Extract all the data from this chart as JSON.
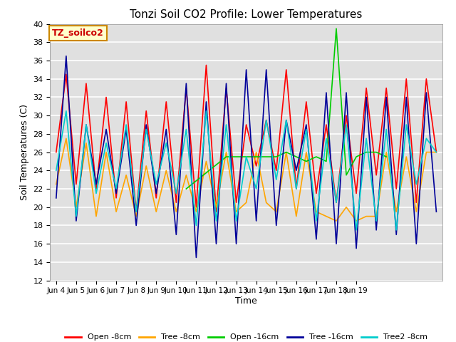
{
  "title": "Tonzi Soil CO2 Profile: Lower Temperatures",
  "xlabel": "Time",
  "ylabel": "Soil Temperatures (C)",
  "annotation": "TZ_soilco2",
  "ylim": [
    12,
    40
  ],
  "yticks": [
    12,
    14,
    16,
    18,
    20,
    22,
    24,
    26,
    28,
    30,
    32,
    34,
    36,
    38,
    40
  ],
  "bg_color": "#e0e0e0",
  "grid_color": "white",
  "series": {
    "Open -8cm": {
      "color": "#ff0000",
      "x": [
        0,
        0.5,
        1,
        1.5,
        2,
        2.5,
        3,
        3.5,
        4,
        4.5,
        5,
        5.5,
        6,
        6.5,
        7,
        7.5,
        8,
        8.5,
        9,
        9.5,
        10,
        10.5,
        11,
        11.5,
        12,
        12.5,
        13,
        13.5,
        14,
        14.5,
        15,
        15.5,
        16,
        16.5,
        17,
        17.5,
        18,
        18.5,
        19
      ],
      "y": [
        26.0,
        34.5,
        22.5,
        33.5,
        22.0,
        32.0,
        21.0,
        31.5,
        19.5,
        30.5,
        21.0,
        31.5,
        20.5,
        33.0,
        20.0,
        35.5,
        19.5,
        33.0,
        20.5,
        29.0,
        24.5,
        29.5,
        24.0,
        35.0,
        22.0,
        31.5,
        21.5,
        29.0,
        20.5,
        30.0,
        21.5,
        33.0,
        23.5,
        33.0,
        22.0,
        34.0,
        20.5,
        34.0,
        26.0
      ]
    },
    "Tree -8cm": {
      "color": "#ffa500",
      "x": [
        0,
        0.5,
        1,
        1.5,
        2,
        2.5,
        3,
        3.5,
        4,
        4.5,
        5,
        5.5,
        6,
        6.5,
        7,
        7.5,
        8,
        8.5,
        9,
        9.5,
        10,
        10.5,
        11,
        11.5,
        12,
        12.5,
        13,
        13.5,
        14,
        14.5,
        15,
        15.5,
        16,
        16.5,
        17,
        17.5,
        18,
        18.5,
        19
      ],
      "y": [
        22.5,
        27.5,
        20.0,
        27.0,
        19.0,
        26.0,
        19.5,
        23.5,
        19.0,
        24.5,
        19.5,
        24.0,
        19.5,
        23.5,
        19.5,
        25.0,
        20.0,
        26.0,
        19.5,
        20.5,
        26.0,
        20.5,
        19.5,
        26.0,
        19.0,
        26.0,
        19.5,
        19.0,
        18.5,
        20.0,
        18.5,
        19.0,
        19.0,
        26.0,
        19.5,
        25.5,
        19.5,
        26.0,
        26.0
      ]
    },
    "Open -16cm": {
      "color": "#00cc00",
      "x": [
        6.5,
        8.5,
        9.0,
        9.5,
        10.0,
        10.5,
        11.0,
        11.5,
        12.0,
        12.5,
        13.0,
        13.5,
        14.0,
        14.5,
        15.0,
        15.5,
        16.0,
        16.5
      ],
      "y": [
        22.0,
        25.5,
        25.5,
        25.5,
        25.5,
        25.5,
        25.5,
        26.0,
        25.5,
        25.0,
        25.5,
        25.0,
        39.5,
        23.5,
        25.5,
        26.0,
        26.0,
        25.5
      ]
    },
    "Tree -16cm": {
      "color": "#000099",
      "x": [
        0,
        0.5,
        1,
        1.5,
        2,
        2.5,
        3,
        3.5,
        4,
        4.5,
        5,
        5.5,
        6,
        6.5,
        7,
        7.5,
        8,
        8.5,
        9,
        9.5,
        10,
        10.5,
        11,
        11.5,
        12,
        12.5,
        13,
        13.5,
        14,
        14.5,
        15,
        15.5,
        16,
        16.5,
        17,
        17.5,
        18,
        18.5,
        19
      ],
      "y": [
        21.0,
        36.5,
        18.5,
        29.0,
        22.5,
        28.5,
        21.5,
        28.5,
        18.0,
        29.0,
        21.5,
        28.5,
        17.0,
        33.5,
        14.5,
        31.5,
        16.0,
        33.5,
        16.0,
        35.0,
        18.5,
        35.0,
        18.0,
        29.5,
        24.0,
        29.0,
        16.5,
        32.5,
        16.0,
        32.5,
        15.5,
        32.0,
        17.5,
        32.0,
        17.0,
        32.0,
        16.0,
        32.5,
        19.5
      ]
    },
    "Tree2 -8cm": {
      "color": "#00cccc",
      "x": [
        0,
        0.5,
        1,
        1.5,
        2,
        2.5,
        3,
        3.5,
        4,
        4.5,
        5,
        5.5,
        6,
        6.5,
        7,
        7.5,
        8,
        8.5,
        9,
        9.5,
        10,
        10.5,
        11,
        11.5,
        12,
        12.5,
        13,
        13.5,
        14,
        14.5,
        15,
        15.5,
        16,
        16.5,
        17,
        17.5,
        18,
        18.5,
        19
      ],
      "y": [
        24.0,
        30.5,
        19.0,
        29.0,
        21.5,
        27.0,
        22.0,
        29.0,
        19.5,
        28.5,
        22.5,
        27.0,
        21.5,
        28.5,
        18.0,
        30.5,
        18.5,
        29.0,
        18.5,
        25.5,
        22.0,
        29.5,
        23.0,
        29.5,
        22.0,
        28.5,
        18.5,
        27.5,
        20.5,
        29.0,
        17.5,
        27.5,
        18.5,
        28.5,
        17.5,
        29.0,
        22.5,
        27.5,
        26.0
      ]
    }
  },
  "xtick_positions": [
    0,
    1,
    2,
    3,
    4,
    5,
    6,
    7,
    8,
    9,
    10,
    11,
    12,
    13,
    14,
    15
  ],
  "xtick_labels": [
    "Jun 4",
    "Jun 5",
    "Jun 6",
    "Jun 7",
    "Jun 8",
    "Jun 9",
    "Jun 10",
    "Jun 11",
    "Jun 12",
    "Jun 13",
    "Jun 14",
    "Jun 15",
    "Jun 16",
    "Jun 17",
    "Jun 18",
    "Jun 19"
  ],
  "legend_order": [
    "Open -8cm",
    "Tree -8cm",
    "Open -16cm",
    "Tree -16cm",
    "Tree2 -8cm"
  ],
  "figsize": [
    6.4,
    4.8
  ],
  "dpi": 100
}
